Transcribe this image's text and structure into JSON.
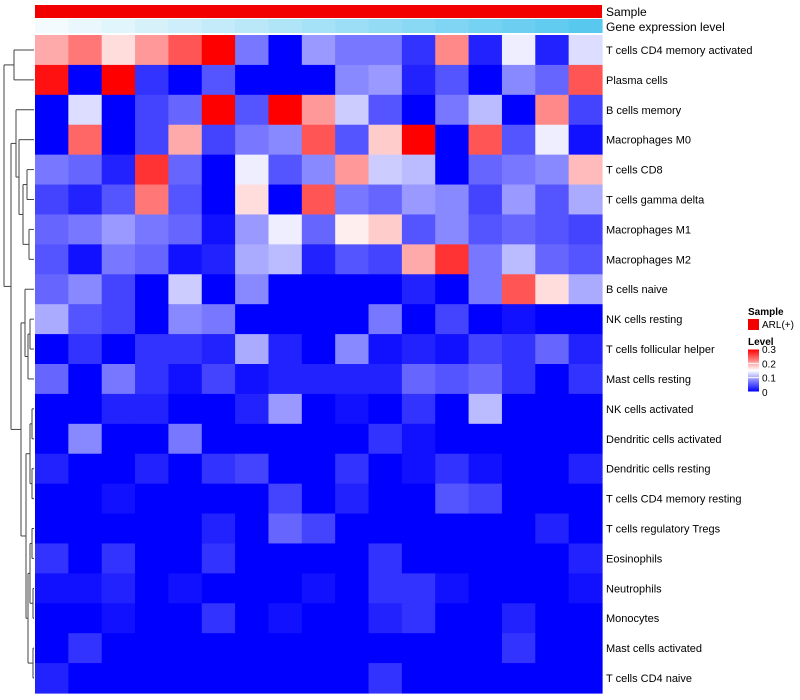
{
  "chart_data": {
    "type": "heatmap",
    "annotations": {
      "sample": {
        "label": "Sample",
        "color": "#f20000"
      },
      "gene_expression": {
        "label": "Gene expression level",
        "color_low": "#f4fbfe",
        "color_high": "#58c8ef"
      }
    },
    "rows": [
      "T cells CD4 memory activated",
      "Plasma cells",
      "B cells memory",
      "Macrophages M0",
      "T cells CD8",
      "T cells gamma delta",
      "Macrophages M1",
      "Macrophages M2",
      "B cells naive",
      "NK cells resting",
      "T cells follicular helper",
      "Mast cells resting",
      "NK cells activated",
      "Dendritic cells activated",
      "Dendritic cells resting",
      "T cells CD4 memory resting",
      "T cells regulatory  Tregs",
      "Eosinophils",
      "Neutrophils",
      "Monocytes",
      "Mast cells activated",
      "T cells CD4 naive"
    ],
    "n_columns": 17,
    "values": [
      [
        0.2,
        0.23,
        0.17,
        0.21,
        0.25,
        0.3,
        0.07,
        0.0,
        0.09,
        0.07,
        0.07,
        0.03,
        0.22,
        0.02,
        0.14,
        0.02,
        0.13
      ],
      [
        0.29,
        0.0,
        0.3,
        0.03,
        0.0,
        0.05,
        0.0,
        0.0,
        0.0,
        0.08,
        0.09,
        0.02,
        0.05,
        0.0,
        0.08,
        0.06,
        0.25
      ],
      [
        0.0,
        0.13,
        0.0,
        0.04,
        0.06,
        0.3,
        0.05,
        0.3,
        0.21,
        0.12,
        0.05,
        0.0,
        0.07,
        0.11,
        0.0,
        0.22,
        0.04
      ],
      [
        0.0,
        0.24,
        0.0,
        0.04,
        0.2,
        0.04,
        0.07,
        0.08,
        0.25,
        0.05,
        0.18,
        0.3,
        0.0,
        0.25,
        0.05,
        0.14,
        0.01
      ],
      [
        0.07,
        0.06,
        0.02,
        0.27,
        0.06,
        0.0,
        0.14,
        0.05,
        0.08,
        0.21,
        0.12,
        0.11,
        0.0,
        0.06,
        0.07,
        0.08,
        0.19
      ],
      [
        0.04,
        0.02,
        0.05,
        0.23,
        0.05,
        0.0,
        0.17,
        0.0,
        0.25,
        0.07,
        0.06,
        0.09,
        0.08,
        0.04,
        0.09,
        0.05,
        0.1
      ],
      [
        0.06,
        0.07,
        0.09,
        0.07,
        0.06,
        0.01,
        0.09,
        0.14,
        0.06,
        0.16,
        0.18,
        0.05,
        0.08,
        0.05,
        0.06,
        0.05,
        0.04
      ],
      [
        0.05,
        0.01,
        0.07,
        0.06,
        0.01,
        0.02,
        0.1,
        0.11,
        0.02,
        0.05,
        0.04,
        0.2,
        0.27,
        0.07,
        0.11,
        0.06,
        0.05
      ],
      [
        0.06,
        0.08,
        0.04,
        0.0,
        0.12,
        0.0,
        0.08,
        0.0,
        0.0,
        0.0,
        0.0,
        0.02,
        0.0,
        0.07,
        0.25,
        0.17,
        0.1
      ],
      [
        0.1,
        0.05,
        0.04,
        0.0,
        0.08,
        0.07,
        0.0,
        0.0,
        0.0,
        0.0,
        0.07,
        0.0,
        0.04,
        0.0,
        0.01,
        0.0,
        0.0
      ],
      [
        0.0,
        0.03,
        0.0,
        0.03,
        0.03,
        0.02,
        0.1,
        0.02,
        0.0,
        0.08,
        0.01,
        0.02,
        0.01,
        0.04,
        0.03,
        0.06,
        0.02
      ],
      [
        0.06,
        0.0,
        0.07,
        0.03,
        0.01,
        0.04,
        0.01,
        0.02,
        0.02,
        0.02,
        0.02,
        0.06,
        0.05,
        0.06,
        0.03,
        0.0,
        0.03
      ],
      [
        0.0,
        0.0,
        0.02,
        0.02,
        0.0,
        0.0,
        0.02,
        0.09,
        0.0,
        0.01,
        0.0,
        0.03,
        0.0,
        0.11,
        0.0,
        0.0,
        0.0
      ],
      [
        0.0,
        0.08,
        0.0,
        0.0,
        0.07,
        0.0,
        0.0,
        0.0,
        0.0,
        0.0,
        0.03,
        0.01,
        0.0,
        0.0,
        0.0,
        0.0,
        0.0
      ],
      [
        0.02,
        0.0,
        0.0,
        0.02,
        0.0,
        0.03,
        0.04,
        0.0,
        0.0,
        0.03,
        0.0,
        0.01,
        0.03,
        0.01,
        0.0,
        0.0,
        0.02
      ],
      [
        0.0,
        0.0,
        0.01,
        0.0,
        0.0,
        0.0,
        0.0,
        0.04,
        0.0,
        0.02,
        0.0,
        0.0,
        0.05,
        0.04,
        0.0,
        0.0,
        0.0
      ],
      [
        0.0,
        0.0,
        0.0,
        0.0,
        0.0,
        0.02,
        0.0,
        0.06,
        0.04,
        0.0,
        0.0,
        0.0,
        0.0,
        0.0,
        0.0,
        0.02,
        0.0
      ],
      [
        0.03,
        0.0,
        0.03,
        0.0,
        0.0,
        0.03,
        0.0,
        0.0,
        0.0,
        0.0,
        0.03,
        0.0,
        0.0,
        0.0,
        0.0,
        0.0,
        0.02
      ],
      [
        0.01,
        0.01,
        0.02,
        0.0,
        0.01,
        0.0,
        0.0,
        0.0,
        0.01,
        0.0,
        0.03,
        0.03,
        0.01,
        0.0,
        0.0,
        0.0,
        0.01
      ],
      [
        0.0,
        0.0,
        0.01,
        0.0,
        0.0,
        0.03,
        0.0,
        0.01,
        0.0,
        0.0,
        0.02,
        0.03,
        0.0,
        0.0,
        0.02,
        0.0,
        0.0
      ],
      [
        0.0,
        0.03,
        0.0,
        0.0,
        0.0,
        0.0,
        0.0,
        0.0,
        0.0,
        0.0,
        0.0,
        0.0,
        0.0,
        0.0,
        0.03,
        0.0,
        0.0
      ],
      [
        0.02,
        0.0,
        0.0,
        0.0,
        0.0,
        0.0,
        0.0,
        0.0,
        0.0,
        0.0,
        0.03,
        0.0,
        0.0,
        0.0,
        0.0,
        0.0,
        0.0
      ]
    ],
    "color_scale": {
      "min": 0,
      "mid": 0.15,
      "max": 0.3,
      "low_color": "#0000ff",
      "mid_color": "#ffffff",
      "high_color": "#ff0000"
    },
    "legend": {
      "sample_title": "Sample",
      "sample_entry": "ARL(+)",
      "level_title": "Level",
      "level_ticks": [
        "0.3",
        "0.2",
        "0.1",
        "0"
      ],
      "level_tick_values": [
        0.3,
        0.2,
        0.1,
        0
      ]
    }
  }
}
